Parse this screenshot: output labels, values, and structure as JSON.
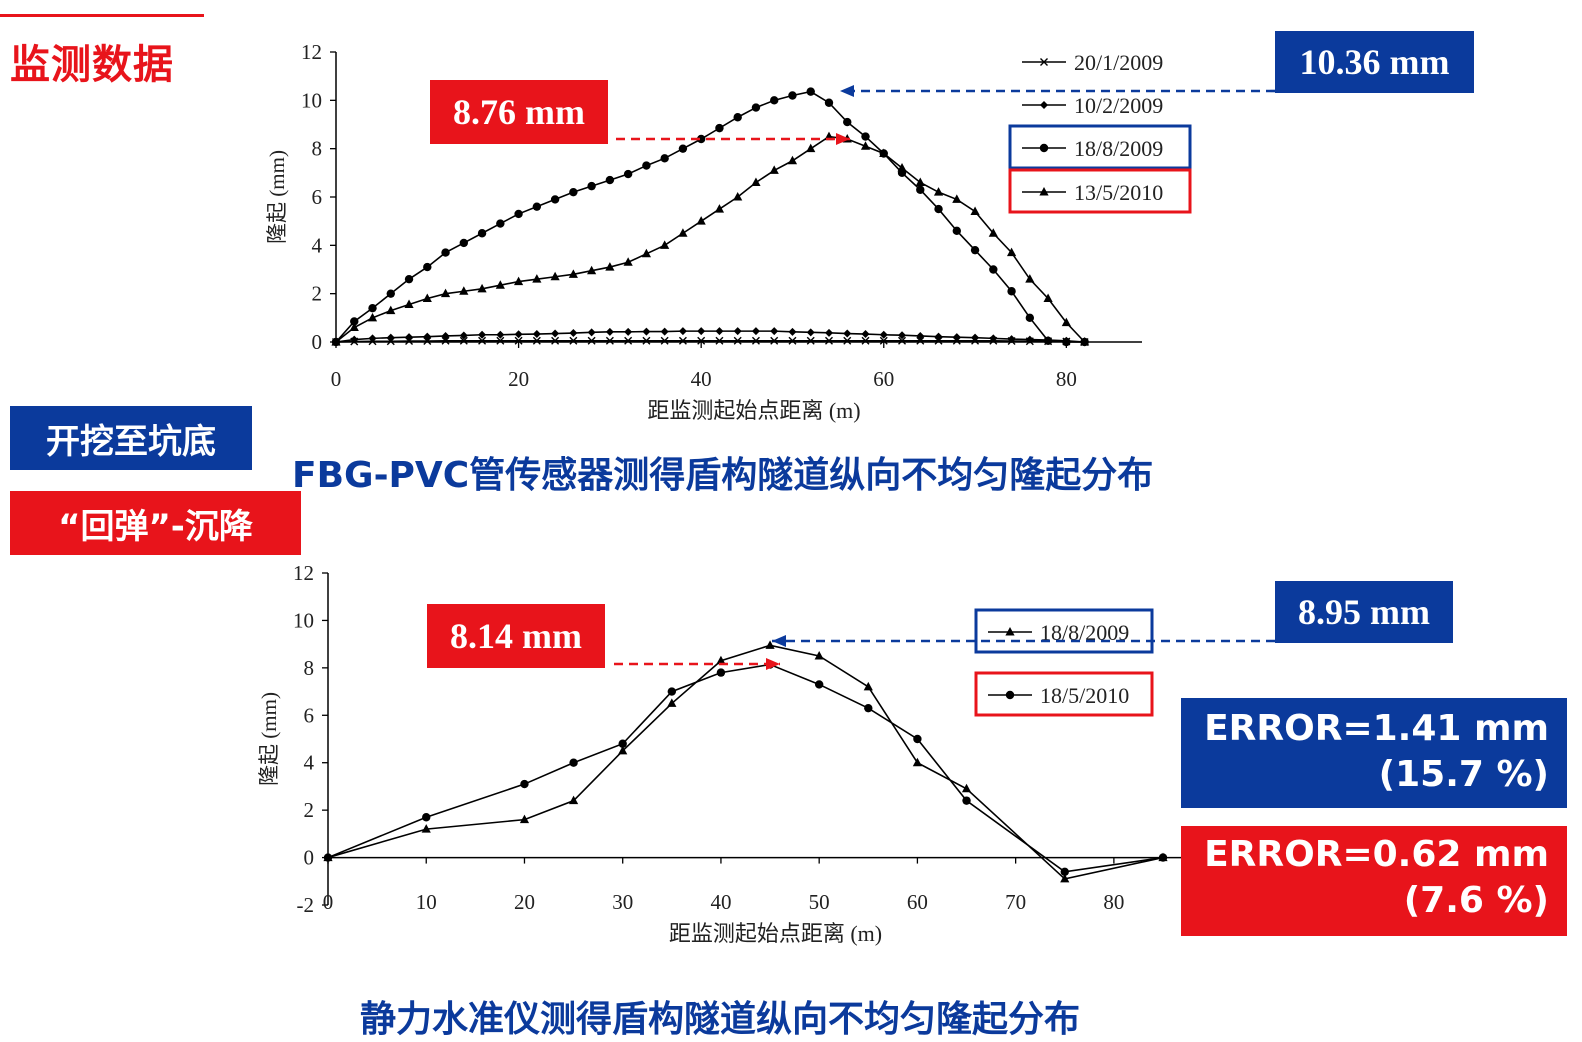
{
  "page": {
    "title": "监测数据",
    "tag_excavation": "开挖至坑底",
    "tag_rebound": "“回弹”-沉降",
    "caption_top": "FBG-PVC管传感器测得盾构隧道纵向不均匀隆起分布",
    "caption_bottom": "静力水准仪测得盾构隧道纵向不均匀隆起分布",
    "callout_top_red": "8.76 mm",
    "callout_top_blue": "10.36 mm",
    "callout_bottom_red": "8.14 mm",
    "callout_bottom_blue": "8.95 mm",
    "error_blue_line1": "ERROR=1.41 mm",
    "error_blue_line2": "(15.7 %)",
    "error_red_line1": "ERROR=0.62 mm",
    "error_red_line2": "(7.6 %)",
    "colors": {
      "red": "#e8141b",
      "blue": "#0b3a9c"
    }
  },
  "chart_data": [
    {
      "type": "line",
      "title": "",
      "xlabel": "距监测起始点距离 (m)",
      "ylabel": "隆起 (mm)",
      "xlim": [
        0,
        85
      ],
      "ylim": [
        0,
        12
      ],
      "xticks": [
        0,
        20,
        40,
        60,
        80
      ],
      "yticks": [
        0,
        2,
        4,
        6,
        8,
        10,
        12
      ],
      "legend_position": "top-right",
      "series": [
        {
          "name": "20/1/2009",
          "marker": "x",
          "x": [
            0,
            2,
            4,
            6,
            8,
            10,
            12,
            14,
            16,
            18,
            20,
            22,
            24,
            26,
            28,
            30,
            32,
            34,
            36,
            38,
            40,
            42,
            44,
            46,
            48,
            50,
            52,
            54,
            56,
            58,
            60,
            62,
            64,
            66,
            68,
            70,
            72,
            74,
            76,
            78,
            80,
            82
          ],
          "y": [
            0,
            0.02,
            0.03,
            0.03,
            0.04,
            0.04,
            0.05,
            0.05,
            0.05,
            0.05,
            0.05,
            0.05,
            0.05,
            0.05,
            0.05,
            0.05,
            0.05,
            0.05,
            0.05,
            0.05,
            0.05,
            0.05,
            0.05,
            0.05,
            0.05,
            0.05,
            0.05,
            0.05,
            0.05,
            0.05,
            0.05,
            0.05,
            0.05,
            0.05,
            0.05,
            0.05,
            0.05,
            0.04,
            0.03,
            0.03,
            0.02,
            0
          ]
        },
        {
          "name": "10/2/2009",
          "marker": "diamond",
          "x": [
            0,
            2,
            4,
            6,
            8,
            10,
            12,
            14,
            16,
            18,
            20,
            22,
            24,
            26,
            28,
            30,
            32,
            34,
            36,
            38,
            40,
            42,
            44,
            46,
            48,
            50,
            52,
            54,
            56,
            58,
            60,
            62,
            64,
            66,
            68,
            70,
            72,
            74,
            76,
            78,
            80,
            82
          ],
          "y": [
            0,
            0.1,
            0.15,
            0.18,
            0.2,
            0.22,
            0.25,
            0.27,
            0.3,
            0.3,
            0.32,
            0.33,
            0.35,
            0.37,
            0.4,
            0.42,
            0.42,
            0.43,
            0.43,
            0.45,
            0.45,
            0.45,
            0.45,
            0.45,
            0.45,
            0.42,
            0.4,
            0.38,
            0.35,
            0.33,
            0.3,
            0.28,
            0.25,
            0.22,
            0.2,
            0.18,
            0.15,
            0.12,
            0.1,
            0.08,
            0.05,
            0
          ]
        },
        {
          "name": "18/8/2009",
          "marker": "circle",
          "x": [
            0,
            2,
            4,
            6,
            8,
            10,
            12,
            14,
            16,
            18,
            20,
            22,
            24,
            26,
            28,
            30,
            32,
            34,
            36,
            38,
            40,
            42,
            44,
            46,
            48,
            50,
            52,
            54,
            56,
            58,
            60,
            62,
            64,
            66,
            68,
            70,
            72,
            74,
            76,
            78,
            80,
            82
          ],
          "y": [
            0,
            0.85,
            1.4,
            2.0,
            2.6,
            3.1,
            3.7,
            4.1,
            4.5,
            4.9,
            5.3,
            5.6,
            5.9,
            6.2,
            6.45,
            6.7,
            6.95,
            7.3,
            7.6,
            8.0,
            8.4,
            8.85,
            9.3,
            9.7,
            10.0,
            10.2,
            10.36,
            9.9,
            9.1,
            8.5,
            7.8,
            7.0,
            6.3,
            5.5,
            4.6,
            3.8,
            3.0,
            2.1,
            1.0,
            0.05,
            0,
            0
          ],
          "x_override": [
            0,
            2,
            4,
            6,
            8,
            10,
            12,
            14,
            16,
            18,
            20,
            22,
            24,
            26,
            28,
            30,
            32,
            34,
            36,
            38,
            40,
            42,
            44,
            46,
            48,
            50,
            52,
            54,
            56,
            58,
            60,
            62,
            64,
            66,
            68,
            70,
            72,
            74,
            76,
            78,
            80,
            82
          ]
        },
        {
          "name": "13/5/2010",
          "marker": "triangle",
          "x": [
            0,
            2,
            4,
            6,
            8,
            10,
            12,
            14,
            16,
            18,
            20,
            22,
            24,
            26,
            28,
            30,
            32,
            34,
            36,
            38,
            40,
            42,
            44,
            46,
            48,
            50,
            52,
            54,
            56,
            58,
            60,
            62,
            64,
            66,
            68,
            70,
            72,
            74,
            76,
            78,
            80,
            82
          ],
          "y": [
            0,
            0.6,
            1.0,
            1.3,
            1.55,
            1.8,
            2.0,
            2.1,
            2.2,
            2.35,
            2.5,
            2.6,
            2.7,
            2.8,
            2.95,
            3.1,
            3.3,
            3.65,
            4.0,
            4.5,
            5.0,
            5.5,
            6.0,
            6.6,
            7.1,
            7.5,
            8.0,
            8.5,
            8.4,
            8.1,
            7.8,
            7.2,
            6.6,
            6.2,
            5.9,
            5.4,
            4.5,
            3.7,
            2.6,
            1.8,
            0.8,
            0
          ]
        }
      ]
    },
    {
      "type": "line",
      "title": "",
      "xlabel": "距监测起始点距离  (m)",
      "ylabel": "隆起 (mm)",
      "xlim": [
        0,
        85
      ],
      "ylim": [
        -2,
        12
      ],
      "xticks": [
        0,
        10,
        20,
        30,
        40,
        50,
        60,
        70,
        80
      ],
      "yticks": [
        -2,
        0,
        2,
        4,
        6,
        8,
        10,
        12
      ],
      "legend_position": "top-right",
      "series": [
        {
          "name": "18/8/2009",
          "marker": "triangle",
          "x": [
            0,
            10,
            20,
            25,
            30,
            35,
            40,
            45,
            50,
            55,
            60,
            65,
            75,
            85
          ],
          "y": [
            0,
            1.2,
            1.6,
            2.4,
            4.5,
            6.5,
            8.3,
            8.95,
            8.5,
            7.2,
            4.0,
            2.9,
            -0.9,
            0
          ]
        },
        {
          "name": "18/5/2010",
          "marker": "circle",
          "x": [
            0,
            10,
            20,
            25,
            30,
            35,
            40,
            45,
            50,
            55,
            60,
            65,
            75,
            85
          ],
          "y": [
            0,
            1.7,
            3.1,
            4.0,
            4.8,
            7.0,
            7.8,
            8.14,
            7.3,
            6.3,
            5.0,
            2.4,
            -0.6,
            0
          ]
        }
      ]
    }
  ]
}
